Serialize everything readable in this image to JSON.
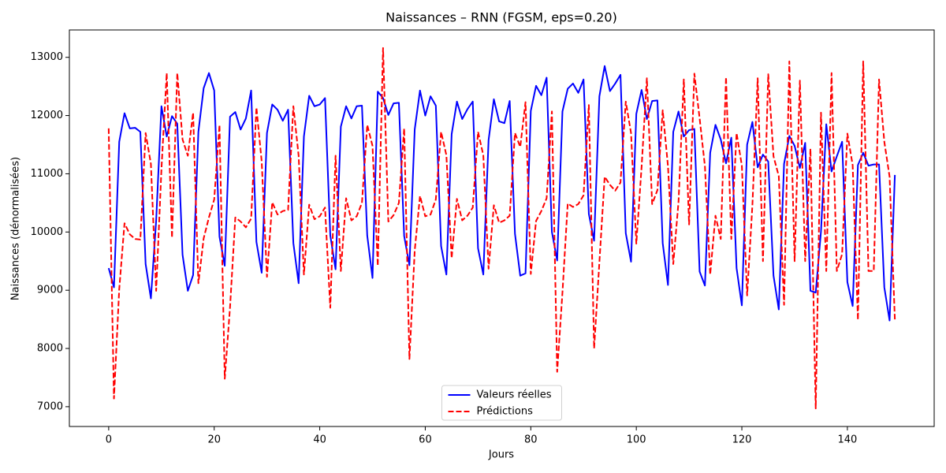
{
  "chart_data": {
    "type": "line",
    "title": "Naissances – RNN (FGSM, eps=0.20)",
    "xlabel": "Jours",
    "ylabel": "Naissances (dénormalisées)",
    "x": [
      0,
      1,
      2,
      3,
      4,
      5,
      6,
      7,
      8,
      9,
      10,
      11,
      12,
      13,
      14,
      15,
      16,
      17,
      18,
      19,
      20,
      21,
      22,
      23,
      24,
      25,
      26,
      27,
      28,
      29,
      30,
      31,
      32,
      33,
      34,
      35,
      36,
      37,
      38,
      39,
      40,
      41,
      42,
      43,
      44,
      45,
      46,
      47,
      48,
      49,
      50,
      51,
      52,
      53,
      54,
      55,
      56,
      57,
      58,
      59,
      60,
      61,
      62,
      63,
      64,
      65,
      66,
      67,
      68,
      69,
      70,
      71,
      72,
      73,
      74,
      75,
      76,
      77,
      78,
      79,
      80,
      81,
      82,
      83,
      84,
      85,
      86,
      87,
      88,
      89,
      90,
      91,
      92,
      93,
      94,
      95,
      96,
      97,
      98,
      99,
      100,
      101,
      102,
      103,
      104,
      105,
      106,
      107,
      108,
      109,
      110,
      111,
      112,
      113,
      114,
      115,
      116,
      117,
      118,
      119,
      120,
      121,
      122,
      123,
      124,
      125,
      126,
      127,
      128,
      129,
      130,
      131,
      132,
      133,
      134,
      135,
      136,
      137,
      138,
      139,
      140,
      141,
      142,
      143,
      144,
      145,
      146,
      147,
      148,
      149
    ],
    "series": [
      {
        "name": "Valeurs réelles",
        "color": "#0000ff",
        "linestyle": "solid",
        "values": [
          9380,
          9050,
          11550,
          12040,
          11780,
          11790,
          11720,
          9450,
          8860,
          10200,
          12160,
          11640,
          11990,
          11860,
          9610,
          8990,
          9260,
          11720,
          12470,
          12730,
          12430,
          9920,
          9420,
          11980,
          12060,
          11760,
          11950,
          12430,
          9830,
          9300,
          11700,
          12190,
          12100,
          11910,
          12100,
          9810,
          9120,
          11640,
          12340,
          12160,
          12190,
          12300,
          9940,
          9360,
          11810,
          12160,
          11950,
          12160,
          12170,
          9940,
          9210,
          12410,
          12300,
          12010,
          12210,
          12220,
          9930,
          9430,
          11760,
          12430,
          12000,
          12330,
          12170,
          9760,
          9270,
          11680,
          12240,
          11940,
          12110,
          12240,
          9720,
          9270,
          11580,
          12280,
          11900,
          11870,
          12250,
          9970,
          9250,
          9290,
          12080,
          12510,
          12350,
          12650,
          10000,
          9510,
          12070,
          12460,
          12550,
          12390,
          12620,
          10310,
          9850,
          12330,
          12850,
          12420,
          12550,
          12700,
          9980,
          9490,
          12030,
          12440,
          11940,
          12250,
          12260,
          9810,
          9090,
          11720,
          12070,
          11640,
          11750,
          11770,
          9320,
          9080,
          11360,
          11840,
          11590,
          11180,
          11620,
          9380,
          8740,
          11500,
          11890,
          11110,
          11330,
          11210,
          9250,
          8670,
          11170,
          11650,
          11480,
          11100,
          11530,
          8990,
          8960,
          10010,
          11850,
          11040,
          11300,
          11550,
          9140,
          8730,
          11150,
          11360,
          11140,
          11160,
          11160,
          9050,
          8480,
          10980
        ]
      },
      {
        "name": "Prédictions",
        "color": "#ff0000",
        "linestyle": "dashed",
        "values": [
          11780,
          7140,
          9020,
          10150,
          9960,
          9880,
          9870,
          11700,
          11170,
          8990,
          11080,
          12730,
          9900,
          12730,
          11590,
          11310,
          12050,
          9120,
          9890,
          10250,
          10560,
          11840,
          7480,
          8710,
          10250,
          10180,
          10080,
          10230,
          12140,
          11210,
          9230,
          10510,
          10300,
          10360,
          10380,
          12160,
          11310,
          9270,
          10470,
          10220,
          10270,
          10420,
          8700,
          11310,
          9330,
          10580,
          10200,
          10270,
          10500,
          11840,
          11480,
          9420,
          13160,
          10180,
          10290,
          10500,
          11780,
          7820,
          9680,
          10620,
          10270,
          10300,
          10560,
          11720,
          11320,
          9550,
          10570,
          10200,
          10280,
          10420,
          11720,
          11320,
          9370,
          10460,
          10160,
          10200,
          10280,
          11700,
          11460,
          12230,
          9280,
          10190,
          10360,
          10580,
          12070,
          7600,
          8960,
          10490,
          10430,
          10480,
          10630,
          12180,
          8000,
          9480,
          10950,
          10810,
          10710,
          10850,
          12240,
          11700,
          9800,
          11120,
          12640,
          10480,
          10720,
          12090,
          11130,
          9450,
          10520,
          12620,
          10130,
          12720,
          11950,
          11130,
          9270,
          10280,
          9880,
          12660,
          9880,
          11700,
          11140,
          8910,
          10460,
          12640,
          9500,
          12710,
          11300,
          10960,
          8750,
          12930,
          9500,
          12600,
          9500,
          11430,
          6970,
          12050,
          9330,
          12730,
          9330,
          9620,
          11690,
          11150,
          8490,
          12930,
          9330,
          9330,
          12620,
          11550,
          10950,
          8490
        ]
      }
    ],
    "xlim": [
      -7.45,
      156.45
    ],
    "xticks": [
      0,
      20,
      40,
      60,
      80,
      100,
      120,
      140
    ],
    "ylim": [
      6660,
      13470
    ],
    "yticks": [
      7000,
      8000,
      9000,
      10000,
      11000,
      12000,
      13000
    ],
    "grid": false,
    "legend": "lower center"
  }
}
